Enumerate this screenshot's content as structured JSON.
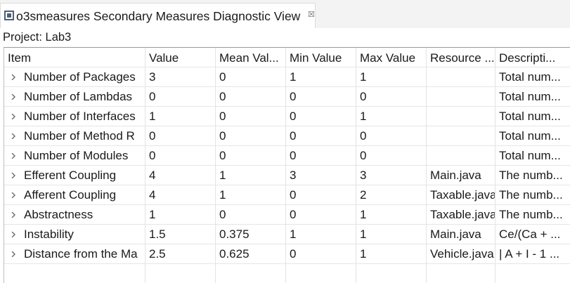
{
  "view": {
    "title": "o3smeasures Secondary Measures Diagnostic View",
    "view_icon": "view-icon",
    "close_icon": "close-icon",
    "close_glyph": "☒"
  },
  "project_label": "Project: Lab3",
  "table": {
    "columns": [
      "Item",
      "Value",
      "Mean Val...",
      "Min Value",
      "Max Value",
      "Resource ...",
      "Descripti..."
    ],
    "rows": [
      [
        "Number of Packages",
        "3",
        "0",
        "1",
        "1",
        "",
        "Total num..."
      ],
      [
        "Number of Lambdas",
        "0",
        "0",
        "0",
        "0",
        "",
        "Total num..."
      ],
      [
        "Number of Interfaces",
        "1",
        "0",
        "0",
        "1",
        "",
        "Total num..."
      ],
      [
        "Number of Method R",
        "0",
        "0",
        "0",
        "0",
        "",
        "Total num..."
      ],
      [
        "Number of Modules",
        "0",
        "0",
        "0",
        "0",
        "",
        "Total num..."
      ],
      [
        "Efferent Coupling",
        "4",
        "1",
        "3",
        "3",
        "Main.java",
        "The numb..."
      ],
      [
        "Afferent Coupling",
        "4",
        "1",
        "0",
        "2",
        "Taxable.java",
        "The numb..."
      ],
      [
        "Abstractness",
        "1",
        "0",
        "0",
        "1",
        "Taxable.java",
        "The numb..."
      ],
      [
        "Instability",
        "1.5",
        "0.375",
        "1",
        "1",
        "Main.java",
        "Ce/(Ca + ..."
      ],
      [
        "Distance from the Ma",
        "2.5",
        "0.625",
        "0",
        "1",
        "Vehicle.java",
        "| A + I - 1 ..."
      ]
    ],
    "expand_icon": "chevron-right-icon"
  }
}
